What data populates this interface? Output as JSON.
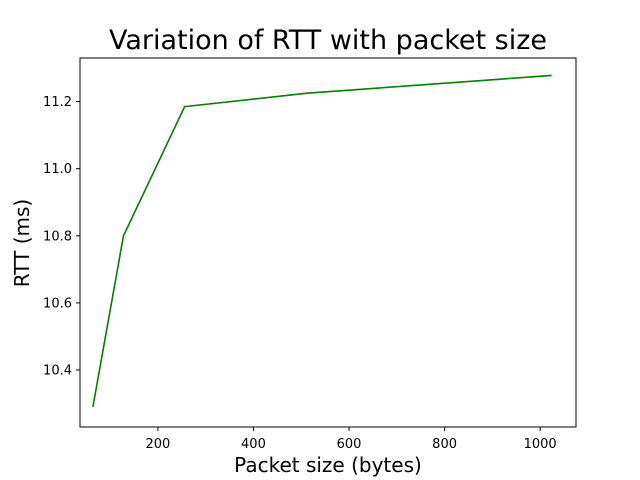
{
  "chart_data": {
    "type": "line",
    "title": "Variation of RTT with packet size",
    "xlabel": "Packet size (bytes)",
    "ylabel": "RTT (ms)",
    "xlim": [
      37,
      1075
    ],
    "ylim": [
      10.23,
      11.33
    ],
    "xticks": [
      200,
      400,
      600,
      800,
      1000
    ],
    "yticks": [
      10.4,
      10.6,
      10.8,
      11.0,
      11.2
    ],
    "xtick_labels": [
      "200",
      "400",
      "600",
      "800",
      "1000"
    ],
    "ytick_labels": [
      "10.4",
      "10.6",
      "10.8",
      "11.0",
      "11.2"
    ],
    "grid": false,
    "series": [
      {
        "color": "#008000",
        "x": [
          64,
          128,
          256,
          512,
          1024
        ],
        "y": [
          10.29,
          10.8,
          11.185,
          11.225,
          11.278
        ]
      }
    ]
  }
}
